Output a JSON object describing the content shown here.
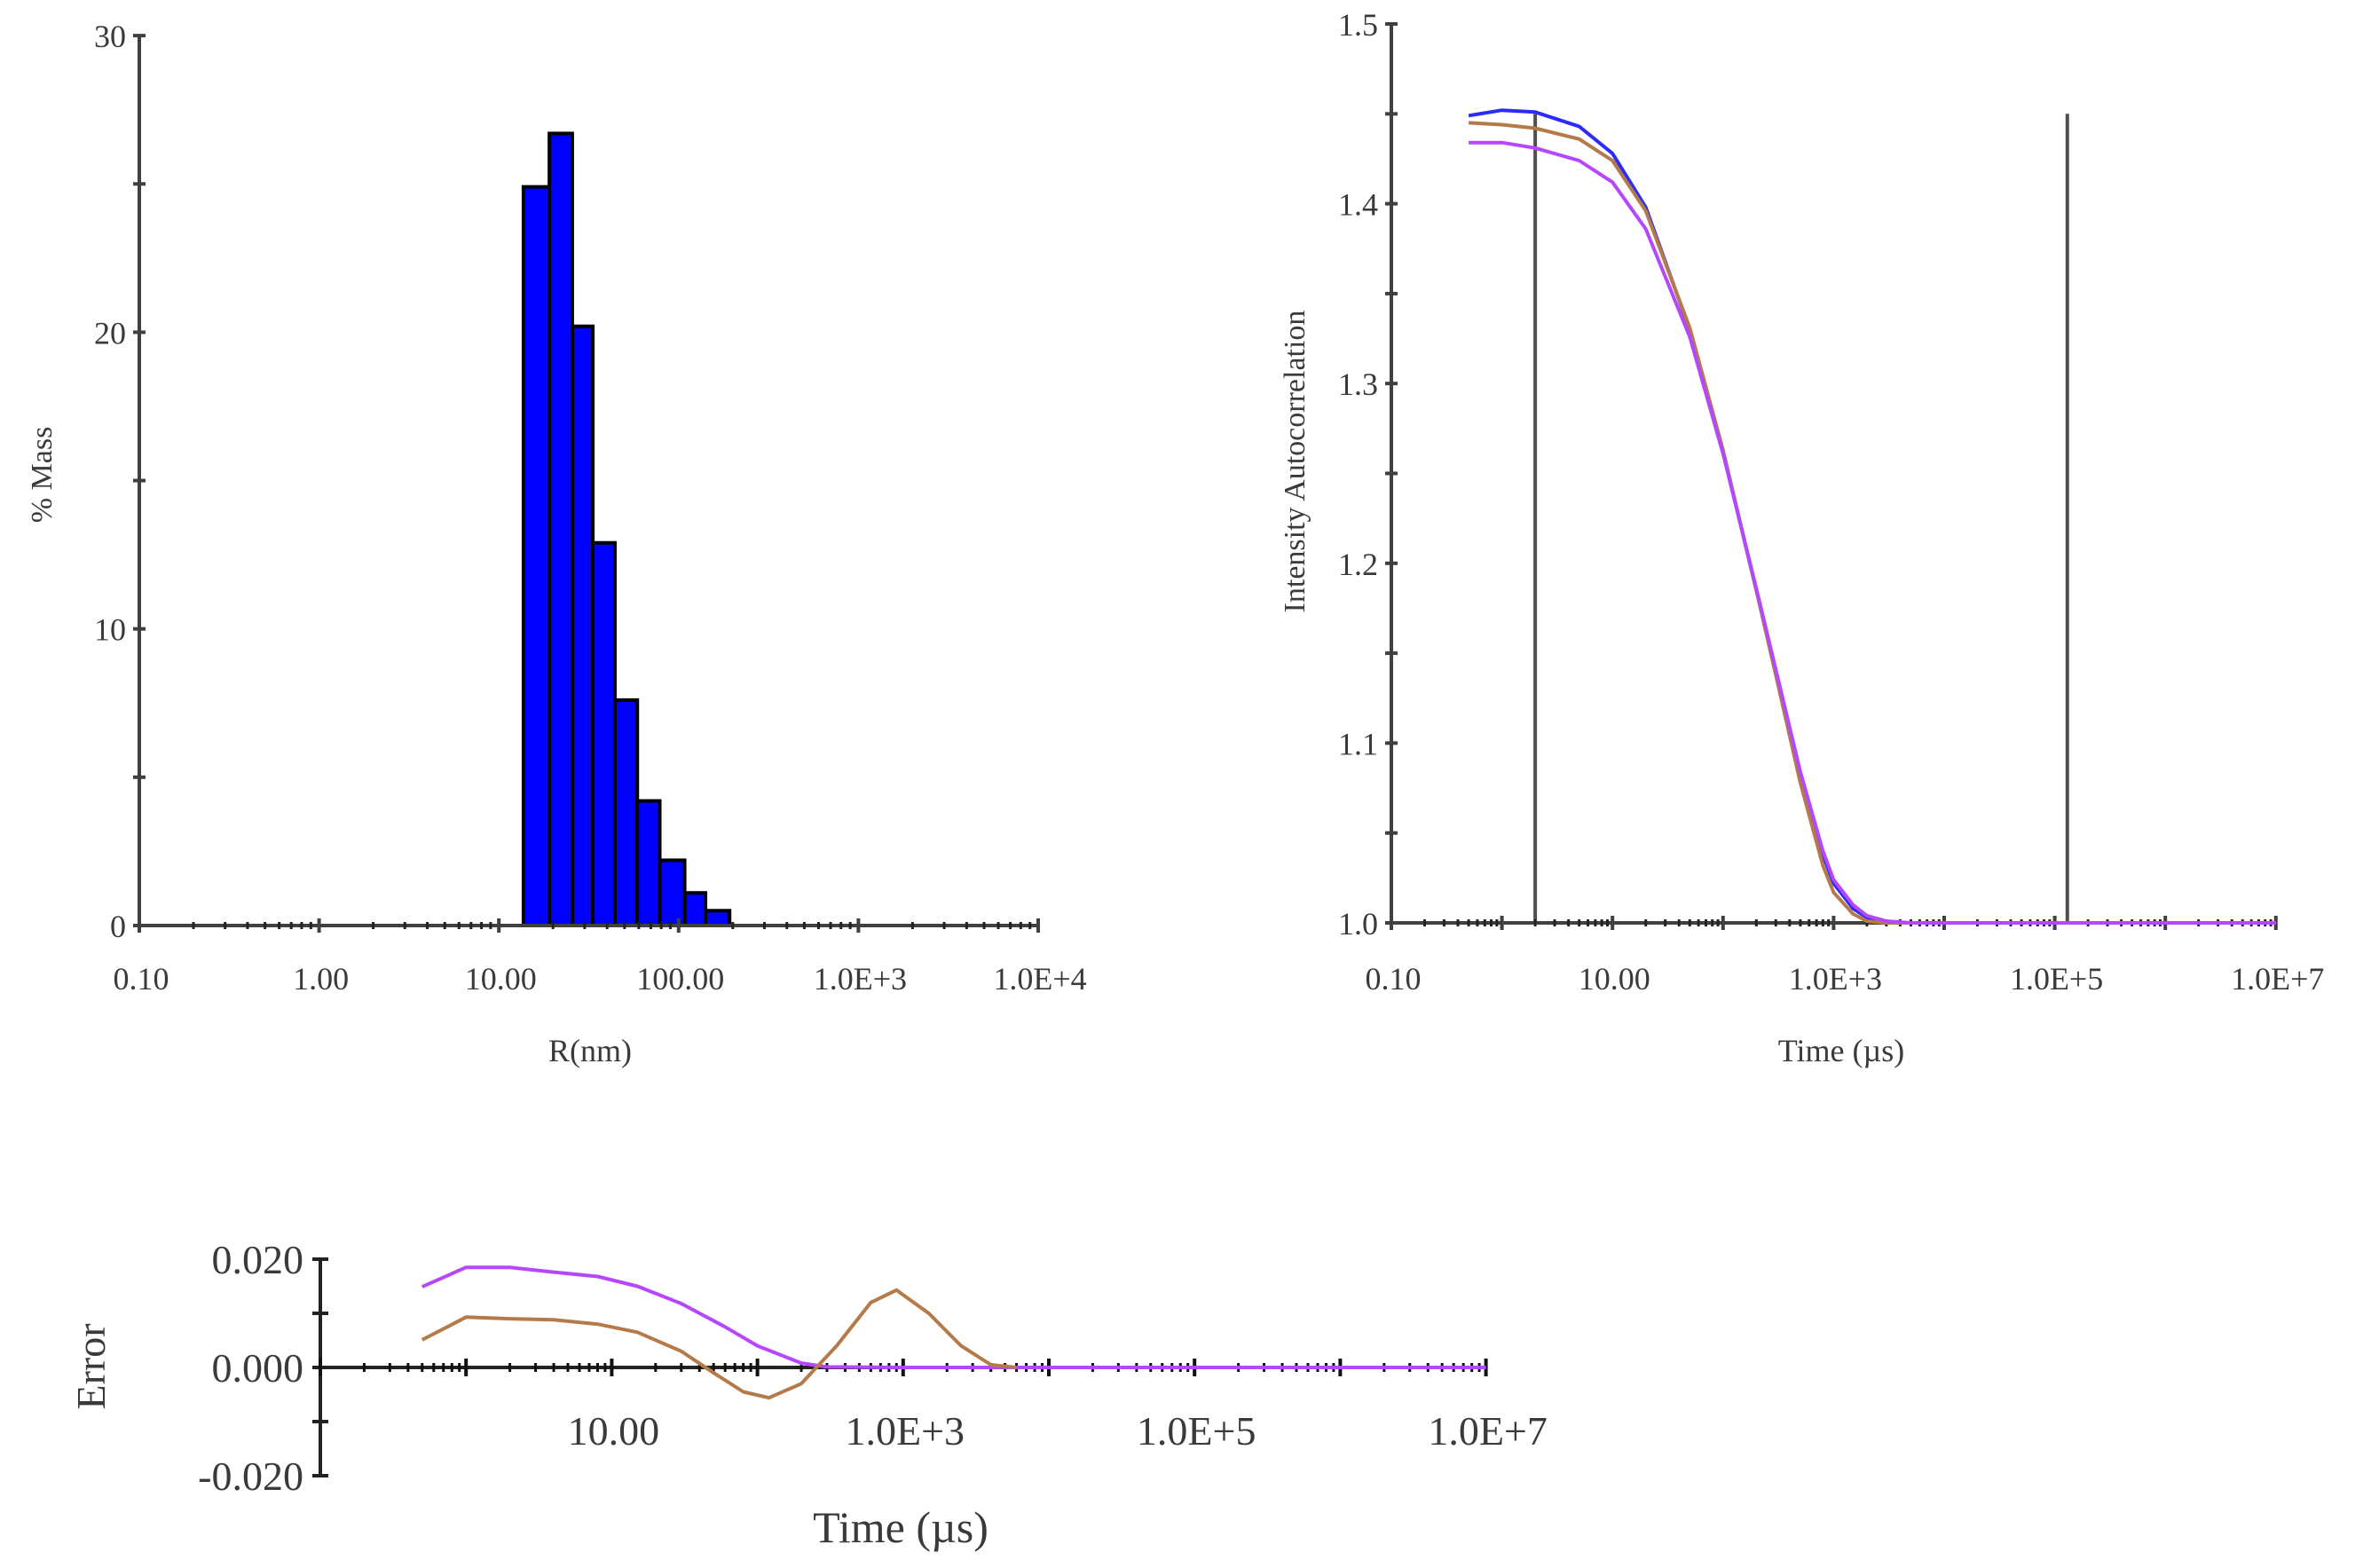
{
  "colors": {
    "bar_fill": "#0000FF",
    "bar_edge": "#000000",
    "axis": "#404040",
    "marker_line": "#505050",
    "series_blue": "#2B2BFF",
    "series_brown": "#B47A4A",
    "series_purple": "#B548FF"
  },
  "chart_data": [
    {
      "id": "size_distribution",
      "type": "bar",
      "title": "",
      "xlabel": "R(nm)",
      "ylabel": "% Mass",
      "x_scale": "log",
      "xlim": [
        0.1,
        10000
      ],
      "ylim": [
        0,
        30
      ],
      "x_tick_labels": [
        "0.10",
        "1.00",
        "10.00",
        "100.00",
        "1.0E+3",
        "1.0E+4"
      ],
      "x_tick_values": [
        0.1,
        1,
        10,
        100,
        1000,
        10000
      ],
      "y_tick_labels": [
        "0",
        "10",
        "20",
        "30"
      ],
      "y_tick_values": [
        0,
        10,
        20,
        30
      ],
      "y_minor_ticks": [
        5,
        15,
        25
      ],
      "grid": false,
      "bin_edges_nm": [
        13.7,
        19.1,
        25.6,
        33.3,
        44.2,
        58.9,
        78.5,
        108,
        141,
        192
      ],
      "values": [
        24.9,
        26.7,
        20.2,
        12.9,
        7.6,
        4.2,
        2.2,
        1.1,
        0.5
      ]
    },
    {
      "id": "intensity_autocorrelation",
      "type": "line",
      "title": "",
      "xlabel": "Time (µs)",
      "ylabel": "Intensity Autocorrelation",
      "x_scale": "log",
      "xlim": [
        0.1,
        10000000
      ],
      "ylim": [
        1.0,
        1.5
      ],
      "x_tick_labels": [
        "0.10",
        "10.00",
        "1.0E+3",
        "1.0E+5",
        "1.0E+7"
      ],
      "x_tick_values": [
        0.1,
        10,
        1000,
        100000,
        10000000
      ],
      "y_tick_labels": [
        "1.0",
        "1.1",
        "1.2",
        "1.3",
        "1.4",
        "1.5"
      ],
      "y_tick_values": [
        1.0,
        1.1,
        1.2,
        1.3,
        1.4,
        1.5
      ],
      "y_minor_ticks": [
        1.05,
        1.15,
        1.25,
        1.35,
        1.45
      ],
      "grid": false,
      "vertical_markers": [
        {
          "x": 2.0,
          "y_top": 1.45
        },
        {
          "x": 130000,
          "y_top": 1.45
        }
      ],
      "x": [
        0.5,
        1,
        2,
        5,
        10,
        20,
        50,
        100,
        200,
        300,
        500,
        800,
        1000,
        1500,
        2000,
        3000,
        5000,
        10000,
        100000,
        1000000,
        10000000
      ],
      "series": [
        {
          "name": "blue",
          "color_key": "series_blue",
          "values": [
            1.449,
            1.452,
            1.451,
            1.443,
            1.428,
            1.398,
            1.33,
            1.262,
            1.185,
            1.14,
            1.082,
            1.038,
            1.022,
            1.008,
            1.003,
            1.0,
            1.0,
            1.0,
            1.0,
            1.0,
            1.0
          ]
        },
        {
          "name": "brown",
          "color_key": "series_brown",
          "values": [
            1.445,
            1.444,
            1.442,
            1.436,
            1.424,
            1.396,
            1.331,
            1.263,
            1.185,
            1.138,
            1.078,
            1.032,
            1.017,
            1.005,
            1.001,
            1.0,
            1.0,
            1.0,
            1.0,
            1.0,
            1.0
          ]
        },
        {
          "name": "purple",
          "color_key": "series_purple",
          "values": [
            1.434,
            1.434,
            1.431,
            1.424,
            1.412,
            1.386,
            1.326,
            1.261,
            1.186,
            1.141,
            1.084,
            1.04,
            1.024,
            1.01,
            1.004,
            1.001,
            1.0,
            1.0,
            1.0,
            1.0,
            1.0
          ]
        }
      ]
    },
    {
      "id": "fit_residuals",
      "type": "line",
      "title": "",
      "xlabel": "Time (µs)",
      "ylabel": "Error",
      "x_scale": "log",
      "xlim": [
        0.1,
        10000000
      ],
      "ylim": [
        -0.02,
        0.02
      ],
      "x_tick_labels": [
        "10.00",
        "1.0E+3",
        "1.0E+5",
        "1.0E+7"
      ],
      "x_tick_values": [
        10,
        1000,
        100000,
        10000000
      ],
      "y_tick_labels": [
        "0.020",
        "0.000",
        "-0.020"
      ],
      "y_tick_values": [
        0.02,
        0.0,
        -0.02
      ],
      "y_minor_ticks": [
        0.01,
        -0.01
      ],
      "grid": false,
      "series": [
        {
          "name": "purple",
          "color_key": "series_purple",
          "x": [
            0.5,
            1,
            2,
            4,
            8,
            15,
            30,
            60,
            100,
            200,
            300,
            1000,
            10000,
            100000,
            1000000,
            10000000
          ],
          "values": [
            0.0149,
            0.0185,
            0.0185,
            0.0176,
            0.0168,
            0.015,
            0.0118,
            0.0075,
            0.004,
            0.0008,
            0.0001,
            0.0,
            0.0,
            0.0,
            0.0,
            0.0
          ]
        },
        {
          "name": "brown",
          "color_key": "series_brown",
          "x": [
            0.5,
            1,
            2,
            4,
            8,
            15,
            30,
            50,
            80,
            120,
            200,
            350,
            600,
            900,
            1500,
            2500,
            4000,
            6000
          ],
          "values": [
            0.0051,
            0.0093,
            0.009,
            0.0088,
            0.008,
            0.0065,
            0.003,
            -0.001,
            -0.0045,
            -0.0056,
            -0.003,
            0.004,
            0.012,
            0.0143,
            0.01,
            0.004,
            0.0005,
            0.0
          ]
        }
      ]
    }
  ],
  "charts": {
    "histogram": {
      "ylabel": "% Mass",
      "xlabel": "R(nm)"
    },
    "autocorrelation": {
      "ylabel": "Intensity Autocorrelation",
      "xlabel": "Time (µs)"
    },
    "residuals": {
      "ylabel": "Error",
      "xlabel": "Time (µs)"
    }
  }
}
